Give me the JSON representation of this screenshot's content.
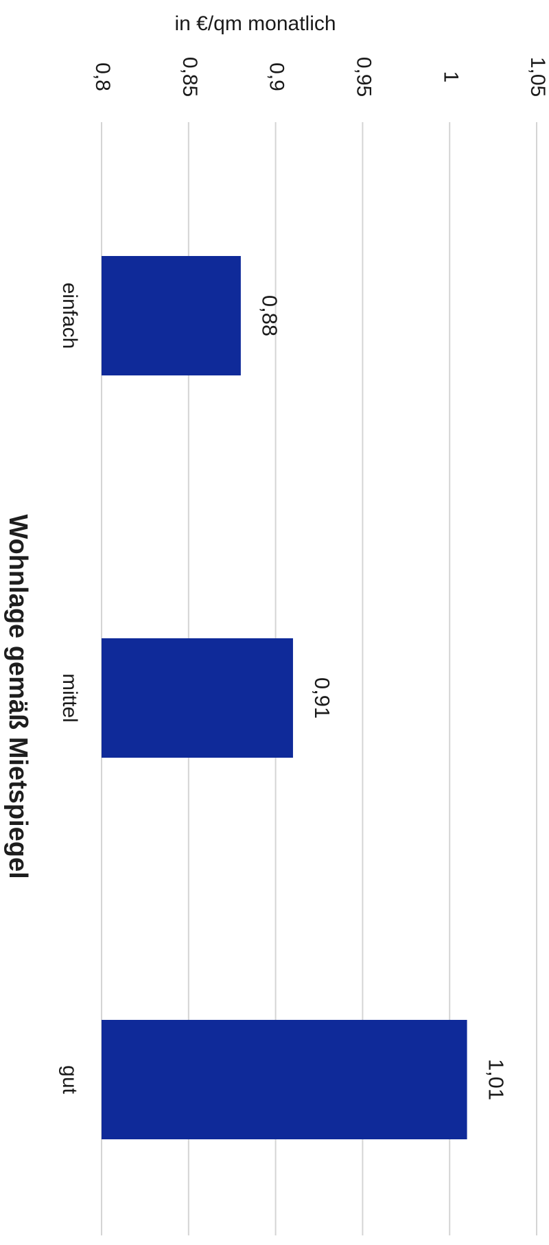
{
  "chart_data": {
    "type": "bar",
    "orientation": "rotated-90",
    "categories": [
      "einfach",
      "mittel",
      "gut"
    ],
    "values": [
      0.88,
      0.91,
      1.01
    ],
    "data_labels": [
      "0,88",
      "0,91",
      "1,01"
    ],
    "xlabel": "Wohnlage gemäß Mietspiegel",
    "ylabel": "in €/qm monatlich",
    "ylim": [
      0.8,
      1.05
    ],
    "yticks": [
      0.8,
      0.85,
      0.9,
      0.95,
      1,
      1.05
    ],
    "ytick_labels": [
      "0,8",
      "0,85",
      "0,9",
      "0,95",
      "1",
      "1,05"
    ],
    "grid": true,
    "legend": "none",
    "bar_color": "#0f2a99"
  }
}
